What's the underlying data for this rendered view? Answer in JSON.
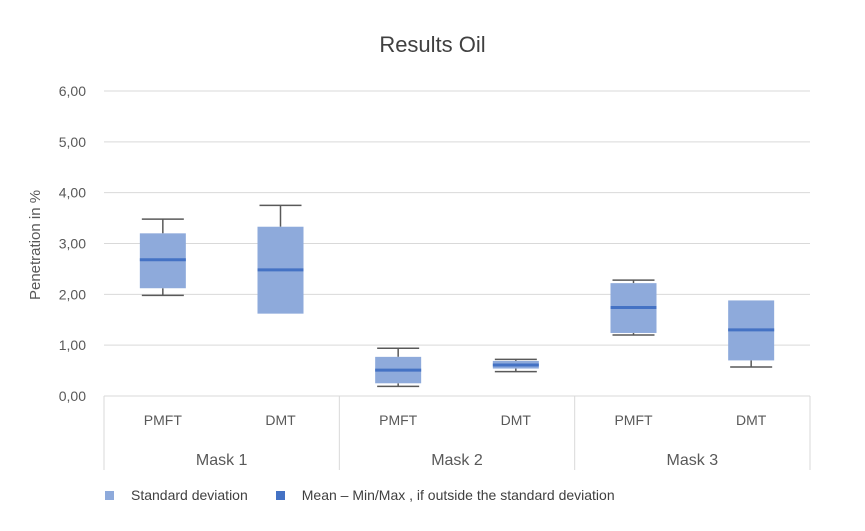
{
  "chart_data": {
    "type": "box",
    "title": "Results Oil",
    "ylabel": "Penetration in %",
    "xlabel": "",
    "ylim": [
      0,
      6
    ],
    "y_ticks": [
      "0,00",
      "1,00",
      "2,00",
      "3,00",
      "4,00",
      "5,00",
      "6,00"
    ],
    "y_tick_values": [
      0,
      1,
      2,
      3,
      4,
      5,
      6
    ],
    "grid": true,
    "groups": [
      {
        "label": "Mask 1",
        "boxes": [
          {
            "category": "PMFT",
            "sd_low": 2.12,
            "sd_high": 3.2,
            "mean": 2.68,
            "min": 1.98,
            "max": 3.48
          },
          {
            "category": "DMT",
            "sd_low": 1.62,
            "sd_high": 3.33,
            "mean": 2.48,
            "min": null,
            "max": 3.75
          }
        ]
      },
      {
        "label": "Mask 2",
        "boxes": [
          {
            "category": "PMFT",
            "sd_low": 0.25,
            "sd_high": 0.77,
            "mean": 0.51,
            "min": 0.19,
            "max": 0.94
          },
          {
            "category": "DMT",
            "sd_low": 0.54,
            "sd_high": 0.69,
            "mean": 0.61,
            "min": 0.48,
            "max": 0.72
          }
        ]
      },
      {
        "label": "Mask 3",
        "boxes": [
          {
            "category": "PMFT",
            "sd_low": 1.24,
            "sd_high": 2.22,
            "mean": 1.74,
            "min": 1.2,
            "max": 2.28
          },
          {
            "category": "DMT",
            "sd_low": 0.7,
            "sd_high": 1.88,
            "mean": 1.3,
            "min": 0.57,
            "max": null
          }
        ]
      }
    ],
    "legend": {
      "position": "bottom",
      "entries": [
        {
          "label": "Standard deviation",
          "color": "#8eaadb"
        },
        {
          "label": "Mean – Min/Max , if outside the standard deviation",
          "color": "#4472c4"
        }
      ]
    },
    "colors": {
      "box": "#8eaadb",
      "mean": "#4472c4",
      "whisker": "#595959",
      "grid": "#d9d9d9"
    }
  }
}
